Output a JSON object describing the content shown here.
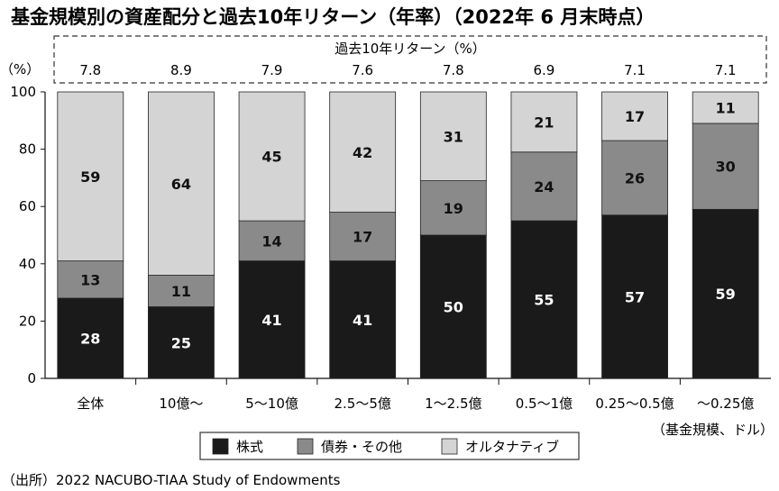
{
  "chart_data": {
    "type": "bar",
    "stacked": true,
    "title": "基金規模別の資産配分と過去10年リターン（年率）（2022年 6 月末時点）",
    "return_header": "過去10年リターン（%）",
    "ylabel": "（%）",
    "ylim": [
      0,
      100
    ],
    "yticks": [
      0,
      20,
      40,
      60,
      80,
      100
    ],
    "xlabel": "（基金規模、ドル）",
    "categories": [
      "全体",
      "10億～",
      "5～10億",
      "2.5～5億",
      "1～2.5億",
      "0.5～1億",
      "0.25～0.5億",
      "～0.25億"
    ],
    "returns": [
      "7.8",
      "8.9",
      "7.9",
      "7.6",
      "7.8",
      "6.9",
      "7.1",
      "7.1"
    ],
    "series": [
      {
        "name": "株式",
        "color": "#1a1a1a",
        "label_color": "#ffffff",
        "values": [
          28,
          25,
          41,
          41,
          50,
          55,
          57,
          59
        ]
      },
      {
        "name": "債券・その他",
        "color": "#8a8a8a",
        "label_color": "#111111",
        "values": [
          13,
          11,
          14,
          17,
          19,
          24,
          26,
          30
        ]
      },
      {
        "name": "オルタナティブ",
        "color": "#d4d4d4",
        "label_color": "#111111",
        "values": [
          59,
          64,
          45,
          42,
          31,
          21,
          17,
          11
        ]
      }
    ],
    "legend_position": "bottom",
    "grid": false
  },
  "source": "（出所）2022 NACUBO-TIAA Study of Endowments"
}
